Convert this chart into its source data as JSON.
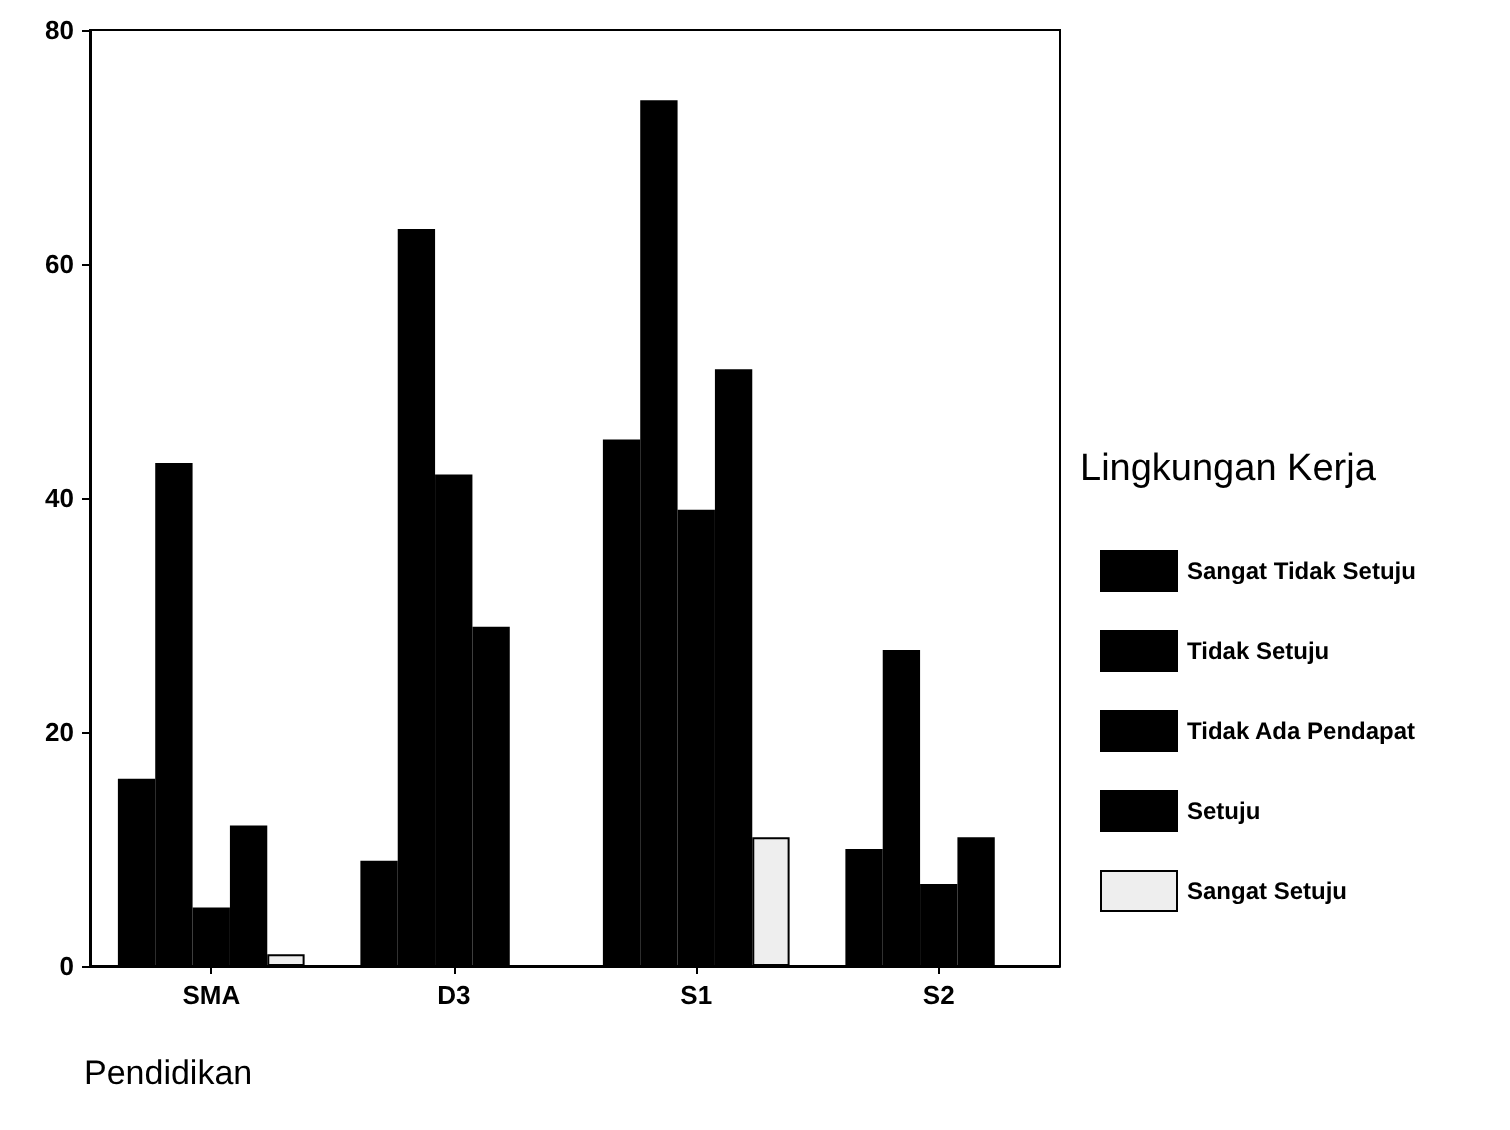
{
  "chart_data": {
    "type": "bar",
    "xlabel": "Pendidikan",
    "legend_title": "Lingkungan Kerja",
    "categories": [
      "SMA",
      "D3",
      "S1",
      "S2"
    ],
    "series": [
      {
        "name": "Sangat Tidak Setuju",
        "color": "#000000",
        "values": [
          16,
          9,
          45,
          10
        ]
      },
      {
        "name": "Tidak Setuju",
        "color": "#000000",
        "values": [
          43,
          63,
          74,
          27
        ]
      },
      {
        "name": "Tidak Ada Pendapat",
        "color": "#000000",
        "values": [
          5,
          42,
          39,
          7
        ]
      },
      {
        "name": "Setuju",
        "color": "#000000",
        "values": [
          12,
          29,
          51,
          11
        ]
      },
      {
        "name": "Sangat Setuju",
        "color": "#eeeeee",
        "values": [
          1,
          null,
          11,
          null
        ]
      }
    ],
    "ylim": [
      0,
      80
    ],
    "yticks": [
      0,
      20,
      40,
      60,
      80
    ],
    "grid": false,
    "legend": "right"
  }
}
